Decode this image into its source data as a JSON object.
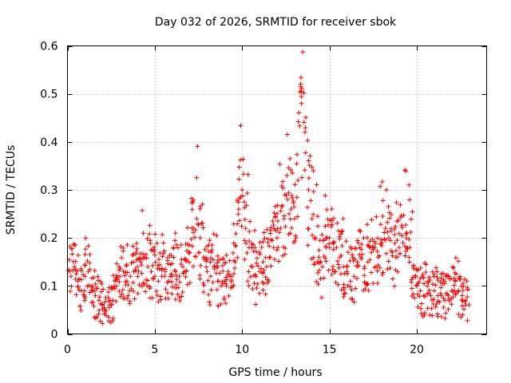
{
  "chart_data": {
    "type": "scatter",
    "title": "Day 032 of 2026, SRMTID for receiver sbok",
    "xlabel": "GPS time / hours",
    "ylabel": "SRMTID / TECUs",
    "xlim": [
      0,
      24
    ],
    "ylim": [
      0,
      0.6
    ],
    "x_ticks": [
      0,
      5,
      10,
      15,
      20
    ],
    "x_tick_labels": [
      "0",
      "5",
      "10",
      "15",
      "20"
    ],
    "y_ticks": [
      0,
      0.1,
      0.2,
      0.3,
      0.4,
      0.5,
      0.6
    ],
    "y_tick_labels": [
      "0",
      "0.1",
      "0.2",
      "0.3",
      "0.4",
      "0.5",
      "0.6"
    ],
    "grid": true,
    "marker": "+",
    "color": "#ff0000",
    "series": [
      {
        "name": "SRMTID",
        "x": [
          0.0,
          0.2,
          0.4,
          0.6,
          0.8,
          1.0,
          1.2,
          1.4,
          1.6,
          1.8,
          2.0,
          2.2,
          2.4,
          2.6,
          2.8,
          3.0,
          3.2,
          3.4,
          3.6,
          3.8,
          4.0,
          4.2,
          4.4,
          4.6,
          4.8,
          5.0,
          5.2,
          5.4,
          5.6,
          5.8,
          6.0,
          6.2,
          6.4,
          6.6,
          6.8,
          7.0,
          7.2,
          7.4,
          7.6,
          7.8,
          8.0,
          8.2,
          8.4,
          8.6,
          8.8,
          9.0,
          9.2,
          9.4,
          9.6,
          9.8,
          10.0,
          10.2,
          10.4,
          10.6,
          10.8,
          11.0,
          11.2,
          11.4,
          11.6,
          11.8,
          12.0,
          12.2,
          12.4,
          12.6,
          12.8,
          13.0,
          13.2,
          13.4,
          13.6,
          13.8,
          14.0,
          14.2,
          14.4,
          14.6,
          14.8,
          15.0,
          15.2,
          15.4,
          15.6,
          15.8,
          16.0,
          16.2,
          16.4,
          16.6,
          16.8,
          17.0,
          17.2,
          17.4,
          17.6,
          17.8,
          18.0,
          18.2,
          18.4,
          18.6,
          18.8,
          19.0,
          19.2,
          19.4,
          19.6,
          19.8,
          20.0,
          20.2,
          20.4,
          20.6,
          20.8,
          21.0,
          21.2,
          21.4,
          21.6,
          21.8,
          22.0,
          22.2,
          22.4,
          22.6,
          22.8
        ],
        "y": [
          0.1,
          0.12,
          0.14,
          0.11,
          0.09,
          0.12,
          0.13,
          0.1,
          0.08,
          0.07,
          0.06,
          0.05,
          0.06,
          0.07,
          0.1,
          0.12,
          0.13,
          0.11,
          0.12,
          0.13,
          0.14,
          0.15,
          0.16,
          0.14,
          0.13,
          0.12,
          0.11,
          0.12,
          0.13,
          0.11,
          0.12,
          0.13,
          0.12,
          0.14,
          0.13,
          0.17,
          0.22,
          0.24,
          0.2,
          0.16,
          0.13,
          0.12,
          0.14,
          0.11,
          0.1,
          0.11,
          0.13,
          0.12,
          0.15,
          0.26,
          0.3,
          0.22,
          0.18,
          0.14,
          0.12,
          0.13,
          0.15,
          0.14,
          0.16,
          0.18,
          0.2,
          0.22,
          0.24,
          0.28,
          0.26,
          0.24,
          0.32,
          0.48,
          0.42,
          0.3,
          0.24,
          0.2,
          0.16,
          0.14,
          0.18,
          0.2,
          0.19,
          0.18,
          0.16,
          0.14,
          0.13,
          0.11,
          0.12,
          0.15,
          0.16,
          0.14,
          0.15,
          0.17,
          0.18,
          0.16,
          0.19,
          0.22,
          0.2,
          0.17,
          0.16,
          0.18,
          0.19,
          0.2,
          0.18,
          0.14,
          0.1,
          0.09,
          0.08,
          0.1,
          0.08,
          0.09,
          0.08,
          0.08,
          0.07,
          0.08,
          0.09,
          0.11,
          0.09,
          0.08,
          0.07
        ]
      }
    ]
  }
}
